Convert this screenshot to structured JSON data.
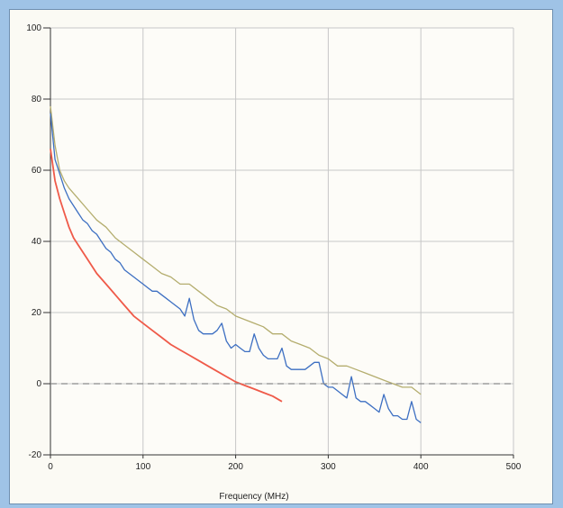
{
  "chart_data": {
    "type": "line",
    "title": "",
    "xlabel": "Frequency (MHz)",
    "ylabel": "",
    "xlim": [
      0,
      500
    ],
    "ylim": [
      -20,
      100
    ],
    "x_ticks": [
      0,
      100,
      200,
      300,
      400,
      500
    ],
    "y_ticks": [
      -20,
      0,
      20,
      40,
      60,
      80,
      100
    ],
    "grid": true,
    "legend": "none",
    "colors": {
      "upper": "#b4ad6e",
      "measured": "#3d6fc2",
      "model": "#ef5a49",
      "baseline": "#8a8a8a",
      "grid": "#c7c7c7"
    },
    "series": [
      {
        "key": "upper",
        "x": [
          0,
          5,
          10,
          15,
          20,
          30,
          40,
          50,
          60,
          70,
          80,
          90,
          100,
          110,
          120,
          130,
          140,
          150,
          160,
          170,
          180,
          190,
          200,
          210,
          220,
          230,
          240,
          250,
          260,
          270,
          280,
          290,
          300,
          310,
          320,
          330,
          340,
          350,
          360,
          370,
          380,
          390,
          400
        ],
        "y": [
          78,
          67,
          60,
          57,
          55,
          52,
          49,
          46,
          44,
          41,
          39,
          37,
          35,
          33,
          31,
          30,
          28,
          28,
          26,
          24,
          22,
          21,
          19,
          18,
          17,
          16,
          14,
          14,
          12,
          11,
          10,
          8,
          7,
          5,
          5,
          4,
          3,
          2,
          1,
          0,
          -1,
          -1,
          -3
        ]
      },
      {
        "key": "measured",
        "x": [
          0,
          5,
          10,
          15,
          20,
          25,
          30,
          35,
          40,
          45,
          50,
          55,
          60,
          65,
          70,
          75,
          80,
          85,
          90,
          95,
          100,
          105,
          110,
          115,
          120,
          125,
          130,
          135,
          140,
          145,
          150,
          155,
          160,
          165,
          170,
          175,
          180,
          185,
          190,
          195,
          200,
          205,
          210,
          215,
          220,
          225,
          230,
          235,
          240,
          245,
          250,
          255,
          260,
          265,
          270,
          275,
          280,
          285,
          290,
          295,
          300,
          305,
          310,
          315,
          320,
          325,
          330,
          335,
          340,
          345,
          350,
          355,
          360,
          365,
          370,
          375,
          380,
          385,
          390,
          395,
          400
        ],
        "y": [
          76,
          63,
          59,
          55,
          52,
          50,
          48,
          46,
          45,
          43,
          42,
          40,
          38,
          37,
          35,
          34,
          32,
          31,
          30,
          29,
          28,
          27,
          26,
          26,
          25,
          24,
          23,
          22,
          21,
          19,
          24,
          18,
          15,
          14,
          14,
          14,
          15,
          17,
          12,
          10,
          11,
          10,
          9,
          9,
          14,
          10,
          8,
          7,
          7,
          7,
          10,
          5,
          4,
          4,
          4,
          4,
          5,
          6,
          6,
          0,
          -1,
          -1,
          -2,
          -3,
          -4,
          2,
          -4,
          -5,
          -5,
          -6,
          -7,
          -8,
          -3,
          -7,
          -9,
          -9,
          -10,
          -10,
          -5,
          -10,
          -11
        ]
      },
      {
        "key": "model",
        "x": [
          0,
          5,
          10,
          15,
          20,
          25,
          30,
          40,
          50,
          60,
          70,
          80,
          90,
          100,
          110,
          120,
          130,
          140,
          150,
          160,
          170,
          180,
          190,
          200,
          210,
          220,
          230,
          240,
          250
        ],
        "y": [
          66,
          57,
          52,
          48,
          44,
          41,
          39,
          35,
          31,
          28,
          25,
          22,
          19,
          17,
          15,
          13,
          11,
          9.5,
          8,
          6.5,
          5,
          3.5,
          2,
          0.5,
          -0.5,
          -1.5,
          -2.5,
          -3.5,
          -5
        ]
      },
      {
        "key": "baseline",
        "x": [
          0,
          500
        ],
        "y": [
          0,
          0
        ]
      }
    ]
  }
}
